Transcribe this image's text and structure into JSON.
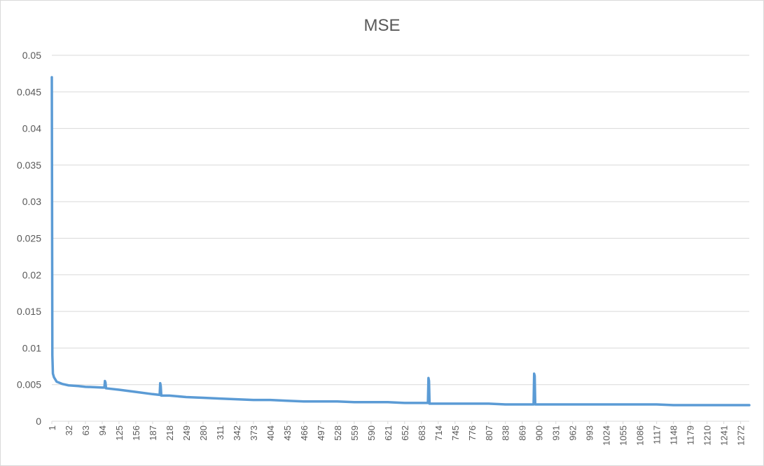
{
  "chart_data": {
    "type": "line",
    "title": "MSE",
    "xlabel": "",
    "ylabel": "",
    "ylim": [
      0,
      0.05
    ],
    "yticks": [
      "0",
      "0.005",
      "0.01",
      "0.015",
      "0.02",
      "0.025",
      "0.03",
      "0.035",
      "0.04",
      "0.045",
      "0.05"
    ],
    "xtick_labels": [
      "1",
      "32",
      "63",
      "94",
      "125",
      "156",
      "187",
      "218",
      "249",
      "280",
      "311",
      "342",
      "373",
      "404",
      "435",
      "466",
      "497",
      "528",
      "559",
      "590",
      "621",
      "652",
      "683",
      "714",
      "745",
      "776",
      "807",
      "838",
      "869",
      "900",
      "931",
      "962",
      "993",
      "1024",
      "1055",
      "1086",
      "1117",
      "1148",
      "1179",
      "1210",
      "1241",
      "1272"
    ],
    "x_count": 1288,
    "grid": true,
    "legend": "none",
    "line_color": "#5b9bd5",
    "series": [
      {
        "x": [
          1,
          2,
          3,
          5,
          10,
          20,
          32,
          50,
          63,
          94,
          98,
          99,
          100,
          101,
          125,
          156,
          187,
          200,
          201,
          202,
          203,
          218,
          249,
          280,
          311,
          342,
          373,
          404,
          435,
          466,
          497,
          528,
          559,
          590,
          621,
          652,
          683,
          695,
          696,
          697,
          698,
          714,
          745,
          776,
          807,
          838,
          869,
          890,
          891,
          892,
          893,
          900,
          931,
          962,
          993,
          1024,
          1055,
          1086,
          1117,
          1148,
          1179,
          1210,
          1241,
          1272,
          1288
        ],
        "y": [
          0.047,
          0.009,
          0.0065,
          0.006,
          0.0054,
          0.0051,
          0.0049,
          0.0048,
          0.0047,
          0.0046,
          0.0046,
          0.0055,
          0.0053,
          0.0045,
          0.0043,
          0.004,
          0.0037,
          0.0036,
          0.0052,
          0.0048,
          0.0035,
          0.0035,
          0.0033,
          0.0032,
          0.0031,
          0.003,
          0.0029,
          0.0029,
          0.0028,
          0.0027,
          0.0027,
          0.0027,
          0.0026,
          0.0026,
          0.0026,
          0.0025,
          0.0025,
          0.0025,
          0.0059,
          0.0055,
          0.0024,
          0.0024,
          0.0024,
          0.0024,
          0.0024,
          0.0023,
          0.0023,
          0.0023,
          0.0065,
          0.0062,
          0.0023,
          0.0023,
          0.0023,
          0.0023,
          0.0023,
          0.0023,
          0.0023,
          0.0023,
          0.0023,
          0.0022,
          0.0022,
          0.0022,
          0.0022,
          0.0022,
          0.0022
        ]
      }
    ]
  }
}
